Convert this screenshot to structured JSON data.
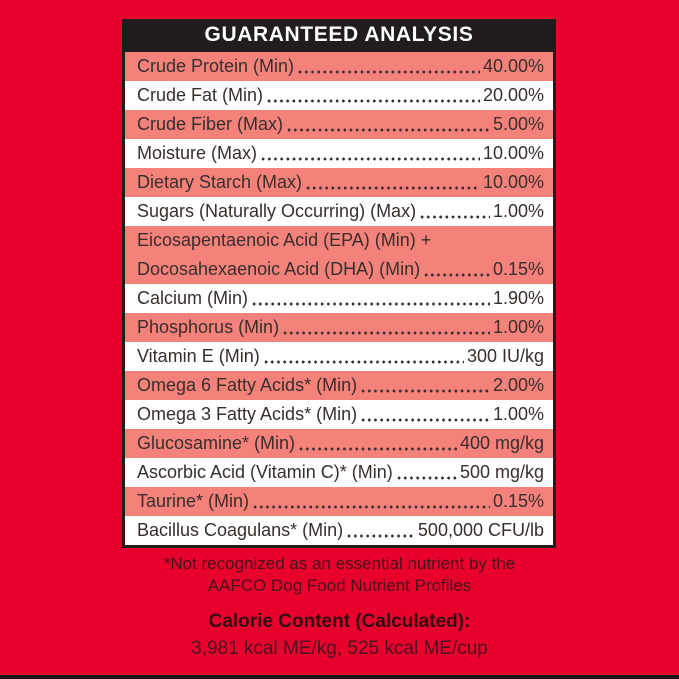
{
  "header": {
    "title": "GUARANTEED ANALYSIS"
  },
  "table": {
    "rows": [
      {
        "label": "Crude Protein (Min)",
        "value": "40.00%"
      },
      {
        "label": "Crude Fat (Min)",
        "value": "20.00%"
      },
      {
        "label": "Crude Fiber (Max)",
        "value": "5.00%"
      },
      {
        "label": "Moisture (Max)",
        "value": "10.00%"
      },
      {
        "label": "Dietary Starch (Max)",
        "value": "10.00%"
      },
      {
        "label": "Sugars (Naturally Occurring) (Max)",
        "value": "1.00%"
      },
      {
        "label_line1": "Eicosapentaenoic Acid (EPA) (Min) +",
        "label": "Docosahexaenoic Acid (DHA) (Min)",
        "value": "0.15%"
      },
      {
        "label": "Calcium (Min)",
        "value": "1.90%"
      },
      {
        "label": "Phosphorus (Min)",
        "value": "1.00%"
      },
      {
        "label": "Vitamin E (Min)",
        "value": "300 IU/kg"
      },
      {
        "label": "Omega 6 Fatty Acids* (Min)",
        "value": "2.00%"
      },
      {
        "label": "Omega 3 Fatty Acids* (Min)",
        "value": "1.00%"
      },
      {
        "label": "Glucosamine* (Min)",
        "value": "400 mg/kg"
      },
      {
        "label": "Ascorbic Acid (Vitamin C)* (Min)",
        "value": "500 mg/kg"
      },
      {
        "label": "Taurine* (Min)",
        "value": "0.15%"
      },
      {
        "label": "Bacillus Coagulans* (Min)",
        "value": "500,000 CFU/lb"
      }
    ]
  },
  "footnote": {
    "line1": "*Not recognized as an essential nutrient by the",
    "line2": "AAFCO Dog Food Nutrient Profiles"
  },
  "calorie": {
    "title": "Calorie Content (Calculated):",
    "values": "3,981 kcal ME/kg, 525 kcal ME/cup"
  },
  "colors": {
    "background_red": "#E8012D",
    "row_salmon": "#F5827A",
    "row_white": "#FFFFFF",
    "table_black": "#211C1D",
    "header_text": "#FFFFFF",
    "row_text": "#382E2C",
    "footnote_text": "#47121A"
  }
}
